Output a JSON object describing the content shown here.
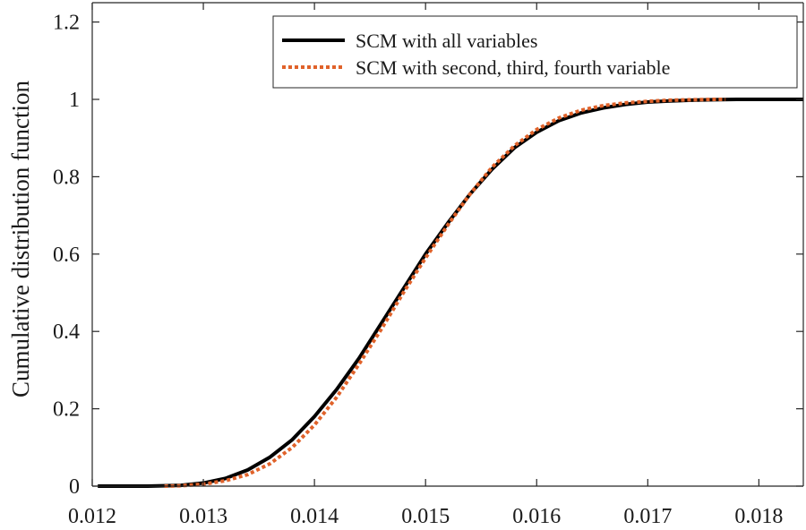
{
  "chart_data": {
    "type": "line",
    "title": "",
    "xlabel": "",
    "ylabel": "Cumulative distribution function",
    "xlim": [
      0.012,
      0.0184
    ],
    "ylim": [
      0,
      1.25
    ],
    "xticks": [
      0.012,
      0.013,
      0.014,
      0.015,
      0.016,
      0.017,
      0.018
    ],
    "xtick_labels": [
      "0.012",
      "0.013",
      "0.014",
      "0.015",
      "0.016",
      "0.017",
      "0.018"
    ],
    "yticks": [
      0,
      0.2,
      0.4,
      0.6,
      0.8,
      1.0,
      1.2
    ],
    "ytick_labels": [
      "0",
      "0.2",
      "0.4",
      "0.6",
      "0.8",
      "1",
      "1.2"
    ],
    "grid": false,
    "legend_position": "top-right",
    "series": [
      {
        "name": "SCM with all variables",
        "color": "#000000",
        "style": "solid",
        "x": [
          0.01205,
          0.0125,
          0.0128,
          0.013,
          0.0132,
          0.0134,
          0.0136,
          0.0138,
          0.014,
          0.0142,
          0.0144,
          0.0146,
          0.0148,
          0.015,
          0.0152,
          0.0154,
          0.0156,
          0.0158,
          0.016,
          0.0162,
          0.0164,
          0.0166,
          0.0168,
          0.017,
          0.0172,
          0.0174,
          0.0176,
          0.0178,
          0.018,
          0.0182,
          0.0184
        ],
        "y": [
          0.0,
          0.0,
          0.002,
          0.008,
          0.02,
          0.042,
          0.075,
          0.12,
          0.18,
          0.25,
          0.33,
          0.42,
          0.51,
          0.6,
          0.68,
          0.755,
          0.82,
          0.875,
          0.915,
          0.945,
          0.965,
          0.978,
          0.987,
          0.993,
          0.996,
          0.998,
          0.999,
          1.0,
          1.0,
          1.0,
          1.0
        ]
      },
      {
        "name": "SCM with second, third, fourth variable",
        "color": "#e0622a",
        "style": "dotted",
        "x": [
          0.01265,
          0.0128,
          0.013,
          0.0132,
          0.0134,
          0.0136,
          0.0138,
          0.014,
          0.0142,
          0.0144,
          0.0146,
          0.0148,
          0.015,
          0.0152,
          0.0154,
          0.0156,
          0.0158,
          0.016,
          0.0162,
          0.0164,
          0.0166,
          0.0168,
          0.017,
          0.0172,
          0.0174,
          0.0176,
          0.0177
        ],
        "y": [
          0.0,
          0.001,
          0.005,
          0.014,
          0.03,
          0.058,
          0.1,
          0.158,
          0.23,
          0.315,
          0.405,
          0.5,
          0.59,
          0.675,
          0.755,
          0.825,
          0.88,
          0.922,
          0.952,
          0.972,
          0.984,
          0.991,
          0.995,
          0.998,
          0.999,
          1.0,
          1.0
        ]
      }
    ]
  }
}
